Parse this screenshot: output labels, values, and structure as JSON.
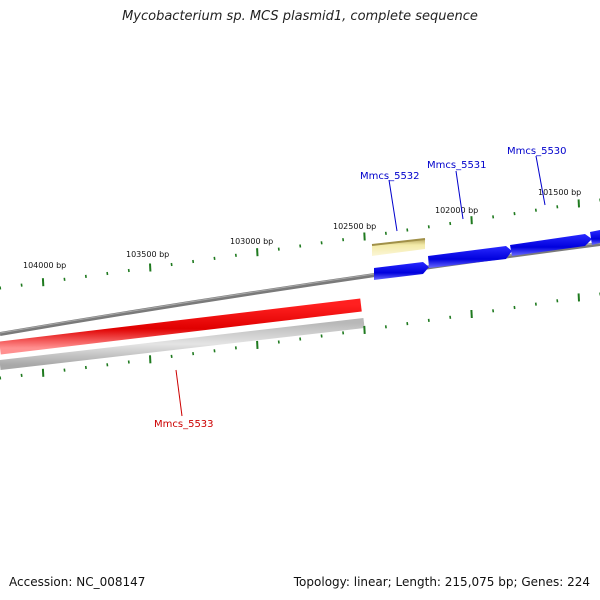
{
  "title": "Mycobacterium sp. MCS plasmid1, complete sequence",
  "footer": {
    "accession": "Accession: NC_008147",
    "summary": "Topology: linear; Length: 215,075 bp; Genes: 224"
  },
  "colors": {
    "backbone": "#808080",
    "tick": "#1f7a1f",
    "forward_gene": "#0000e0",
    "reverse_gene": "#ee0000",
    "highlight_gene": "#f0e6a0",
    "label_forward": "#0000cc",
    "label_reverse": "#cc0000"
  },
  "position_labels": [
    "104000 bp",
    "103500 bp",
    "103000 bp",
    "102500 bp",
    "102000 bp",
    "101500 bp"
  ],
  "genes": [
    {
      "name": "Mmcs_5530",
      "strand": "forward",
      "color": "#0000e0"
    },
    {
      "name": "Mmcs_5531",
      "strand": "forward",
      "color": "#0000e0"
    },
    {
      "name": "Mmcs_5532",
      "strand": "forward",
      "color": "#f0e6a0"
    },
    {
      "name": "Mmcs_5533",
      "strand": "reverse",
      "color": "#ee0000"
    }
  ]
}
